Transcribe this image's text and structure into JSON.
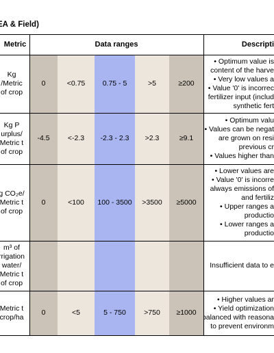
{
  "title": "EA & Field)",
  "header": {
    "metric": "Metric",
    "data_ranges": "Data ranges",
    "description": "Descripti"
  },
  "rows": [
    {
      "metric": [
        "Kg",
        "/Metric",
        "of crop"
      ],
      "values": [
        "0",
        "<0.75",
        "0.75 - 5",
        ">5",
        "≥200"
      ],
      "description": [
        "• Optimum value is",
        "content of the harve",
        "• Very low values a",
        "• Value '0' is incorrec",
        "fertilizer input (includ",
        "synthetic fert"
      ]
    },
    {
      "metric": [
        "Kg P",
        "urplus/",
        "Metric t",
        "of crop"
      ],
      "values": [
        "-4.5",
        "<-2.3",
        "-2.3 - 2.3",
        ">2.3",
        "≥9.1"
      ],
      "description": [
        "• Optimum valu",
        "• Values can be negat",
        "are grown on resi",
        "previous cr",
        "• Values higher than"
      ]
    },
    {
      "metric": [
        "g CO₂e/",
        "Metric t",
        "of crop"
      ],
      "values": [
        "0",
        "<100",
        "100 - 3500",
        ">3500",
        "≥5000"
      ],
      "description": [
        "• Lower values are",
        "• Value '0' is incorre",
        "always emissions of",
        "and fertiliz",
        "• Upper ranges a",
        "productio",
        "• Lower ranges a",
        "productio"
      ]
    },
    {
      "metric": [
        "m³ of",
        "rrigation",
        "water/",
        "Metric t",
        "of crop"
      ],
      "description": [
        "Insufficient data to e"
      ]
    },
    {
      "metric": [
        "Metric t",
        "crop/ha"
      ],
      "values": [
        "0",
        "<5",
        "5 - 750",
        ">750",
        "≥1000"
      ],
      "description": [
        "• Higher values ar",
        "• Yield optimization",
        "balanced with reasona",
        "to prevent environm"
      ]
    }
  ]
}
